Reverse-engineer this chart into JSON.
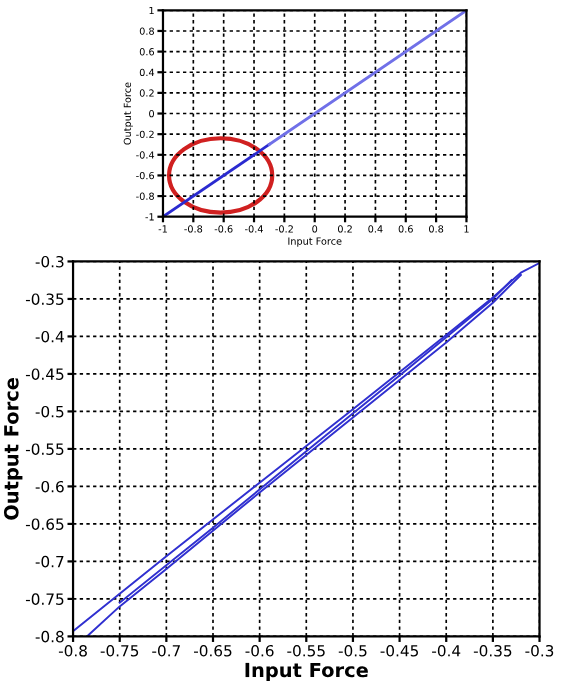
{
  "chart_data": [
    {
      "type": "line",
      "xlabel": "Input Force",
      "ylabel": "Output Force",
      "xlim": [
        -1,
        1
      ],
      "ylim": [
        -1,
        1
      ],
      "xticks": [
        -1,
        -0.8,
        -0.6,
        -0.4,
        -0.2,
        0,
        0.2,
        0.4,
        0.6,
        0.8,
        1
      ],
      "yticks": [
        -1,
        -0.8,
        -0.6,
        -0.4,
        -0.2,
        0,
        0.2,
        0.4,
        0.6,
        0.8,
        1
      ],
      "grid": true,
      "line_style": "solid",
      "marker": "none",
      "series": [
        {
          "color": "#2a2ad0",
          "x": [
            -1,
            -0.3
          ],
          "values": [
            -1,
            -0.3
          ]
        },
        {
          "color": "#7070e8",
          "x": [
            -0.3,
            1
          ],
          "values": [
            -0.3,
            1
          ]
        }
      ]
    },
    {
      "type": "line",
      "xlabel": "Input Force",
      "ylabel": "Output Force",
      "xlim": [
        -0.8,
        -0.3
      ],
      "ylim": [
        -0.8,
        -0.3
      ],
      "xticks": [
        -0.8,
        -0.75,
        -0.7,
        -0.65,
        -0.6,
        -0.55,
        -0.5,
        -0.45,
        -0.4,
        -0.35,
        -0.3
      ],
      "yticks": [
        -0.8,
        -0.75,
        -0.7,
        -0.65,
        -0.6,
        -0.55,
        -0.5,
        -0.45,
        -0.4,
        -0.35,
        -0.3
      ],
      "grid": true,
      "line_style": "solid",
      "marker": "none",
      "series": [
        {
          "color": "#3030d0",
          "x": [
            -0.8,
            -0.7,
            -0.6,
            -0.5,
            -0.4,
            -0.35,
            -0.32,
            -0.3
          ],
          "values": [
            -0.793,
            -0.693,
            -0.595,
            -0.497,
            -0.398,
            -0.348,
            -0.315,
            -0.302
          ]
        },
        {
          "color": "#3030d0",
          "x": [
            -0.32,
            -0.35,
            -0.4,
            -0.5,
            -0.6,
            -0.7,
            -0.75,
            -0.785
          ],
          "values": [
            -0.318,
            -0.355,
            -0.408,
            -0.508,
            -0.608,
            -0.71,
            -0.76,
            -0.8
          ]
        },
        {
          "color": "#3030d0",
          "x": [
            -0.75,
            -0.65,
            -0.55,
            -0.45,
            -0.35,
            -0.33
          ],
          "values": [
            -0.755,
            -0.655,
            -0.553,
            -0.452,
            -0.35,
            -0.325
          ]
        }
      ]
    }
  ]
}
